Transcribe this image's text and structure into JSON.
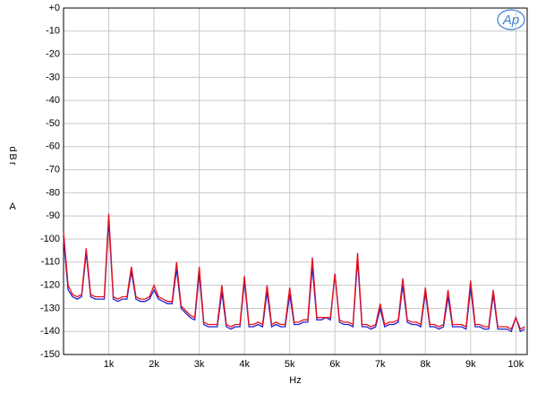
{
  "chart_data": {
    "type": "line",
    "x_label": "Hz",
    "y_label": "dBr",
    "y_unit": "A",
    "logo": "Ap",
    "xlim": [
      0,
      10250
    ],
    "ylim": [
      -150,
      0
    ],
    "xticks": [
      {
        "value": 1000,
        "label": "1k"
      },
      {
        "value": 2000,
        "label": "2k"
      },
      {
        "value": 3000,
        "label": "3k"
      },
      {
        "value": 4000,
        "label": "4k"
      },
      {
        "value": 5000,
        "label": "5k"
      },
      {
        "value": 6000,
        "label": "6k"
      },
      {
        "value": 7000,
        "label": "7k"
      },
      {
        "value": 8000,
        "label": "8k"
      },
      {
        "value": 9000,
        "label": "9k"
      },
      {
        "value": 10000,
        "label": "10k"
      }
    ],
    "yticks": [
      {
        "value": 0,
        "label": "+0"
      },
      -10,
      -20,
      -30,
      -40,
      -50,
      -60,
      -70,
      -80,
      -90,
      -100,
      -110,
      -120,
      -130,
      -140,
      -150
    ],
    "grid": true,
    "x": [
      0,
      100,
      200,
      300,
      400,
      500,
      600,
      700,
      800,
      900,
      1000,
      1100,
      1200,
      1300,
      1400,
      1500,
      1600,
      1700,
      1800,
      1900,
      2000,
      2100,
      2200,
      2300,
      2400,
      2500,
      2600,
      2700,
      2800,
      2900,
      3000,
      3100,
      3200,
      3300,
      3400,
      3500,
      3600,
      3700,
      3800,
      3900,
      4000,
      4100,
      4200,
      4300,
      4400,
      4500,
      4600,
      4700,
      4800,
      4900,
      5000,
      5100,
      5200,
      5300,
      5400,
      5500,
      5600,
      5700,
      5800,
      5900,
      6000,
      6100,
      6200,
      6300,
      6400,
      6500,
      6600,
      6700,
      6800,
      6900,
      7000,
      7100,
      7200,
      7300,
      7400,
      7500,
      7600,
      7700,
      7800,
      7900,
      8000,
      8100,
      8200,
      8300,
      8400,
      8500,
      8600,
      8700,
      8800,
      8900,
      9000,
      9100,
      9200,
      9300,
      9400,
      9500,
      9600,
      9700,
      9800,
      9900,
      10000,
      10100,
      10200
    ],
    "series": [
      {
        "color": "#2020d0",
        "values": [
          -100,
          -122,
          -125,
          -126,
          -125,
          -106,
          -125,
          -126,
          -126,
          -126,
          -92,
          -126,
          -127,
          -126,
          -126,
          -114,
          -126,
          -127,
          -127,
          -126,
          -122,
          -126,
          -127,
          -128,
          -128,
          -113,
          -130,
          -132,
          -134,
          -135,
          -115,
          -137,
          -138,
          -138,
          -138,
          -123,
          -138,
          -139,
          -138,
          -138,
          -118,
          -138,
          -138,
          -137,
          -138,
          -123,
          -138,
          -137,
          -138,
          -138,
          -124,
          -137,
          -137,
          -136,
          -136,
          -112,
          -135,
          -135,
          -134,
          -135,
          -115,
          -136,
          -137,
          -137,
          -138,
          -109,
          -138,
          -138,
          -139,
          -138,
          -130,
          -138,
          -137,
          -137,
          -136,
          -120,
          -136,
          -137,
          -137,
          -138,
          -123,
          -138,
          -138,
          -139,
          -138,
          -125,
          -138,
          -138,
          -138,
          -139,
          -121,
          -138,
          -138,
          -139,
          -139,
          -124,
          -139,
          -139,
          -139,
          -140,
          -134,
          -140,
          -139
        ]
      },
      {
        "color": "#e8101a",
        "values": [
          -97,
          -120,
          -124,
          -125,
          -124,
          -104,
          -124,
          -125,
          -125,
          -125,
          -89,
          -125,
          -126,
          -125,
          -125,
          -112,
          -125,
          -126,
          -126,
          -125,
          -120,
          -125,
          -126,
          -127,
          -127,
          -110,
          -129,
          -131,
          -133,
          -134,
          -112,
          -136,
          -137,
          -137,
          -137,
          -120,
          -137,
          -138,
          -137,
          -137,
          -116,
          -137,
          -137,
          -136,
          -137,
          -120,
          -137,
          -136,
          -137,
          -137,
          -121,
          -136,
          -136,
          -135,
          -135,
          -108,
          -134,
          -134,
          -134,
          -134,
          -115,
          -135,
          -136,
          -136,
          -137,
          -106,
          -137,
          -137,
          -138,
          -137,
          -128,
          -137,
          -136,
          -136,
          -135,
          -117,
          -135,
          -136,
          -136,
          -137,
          -121,
          -137,
          -137,
          -138,
          -137,
          -122,
          -137,
          -137,
          -137,
          -138,
          -118,
          -137,
          -137,
          -138,
          -138,
          -122,
          -138,
          -138,
          -138,
          -139,
          -134,
          -139,
          -138
        ]
      }
    ]
  }
}
